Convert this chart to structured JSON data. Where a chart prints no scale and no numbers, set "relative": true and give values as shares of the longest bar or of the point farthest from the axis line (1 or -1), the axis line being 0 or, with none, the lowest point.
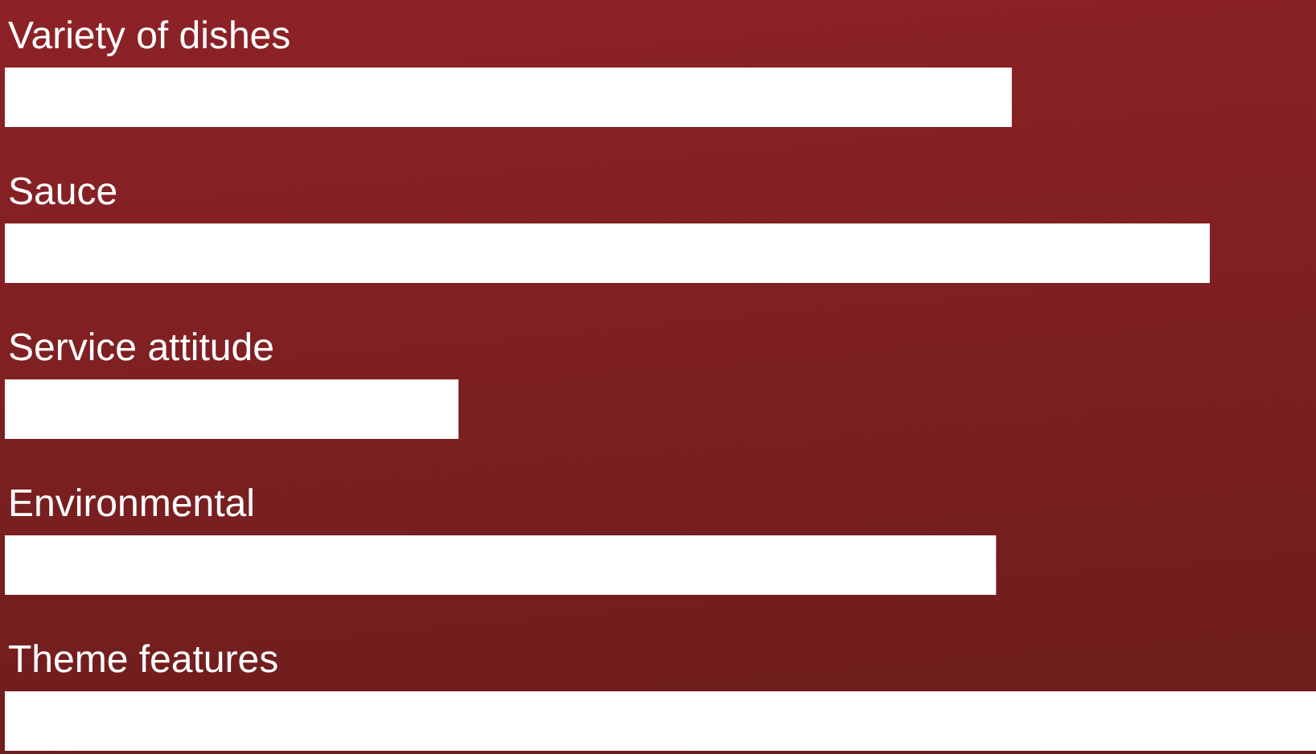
{
  "chart_data": {
    "type": "bar",
    "orientation": "horizontal",
    "relative": true,
    "categories": [
      "Variety of dishes",
      "Sauce",
      "Service attitude",
      "Environmental",
      "Theme features"
    ],
    "values": [
      0.768,
      0.919,
      0.346,
      0.756,
      1
    ],
    "color": "#ffffff",
    "grid": false,
    "legend": false
  }
}
